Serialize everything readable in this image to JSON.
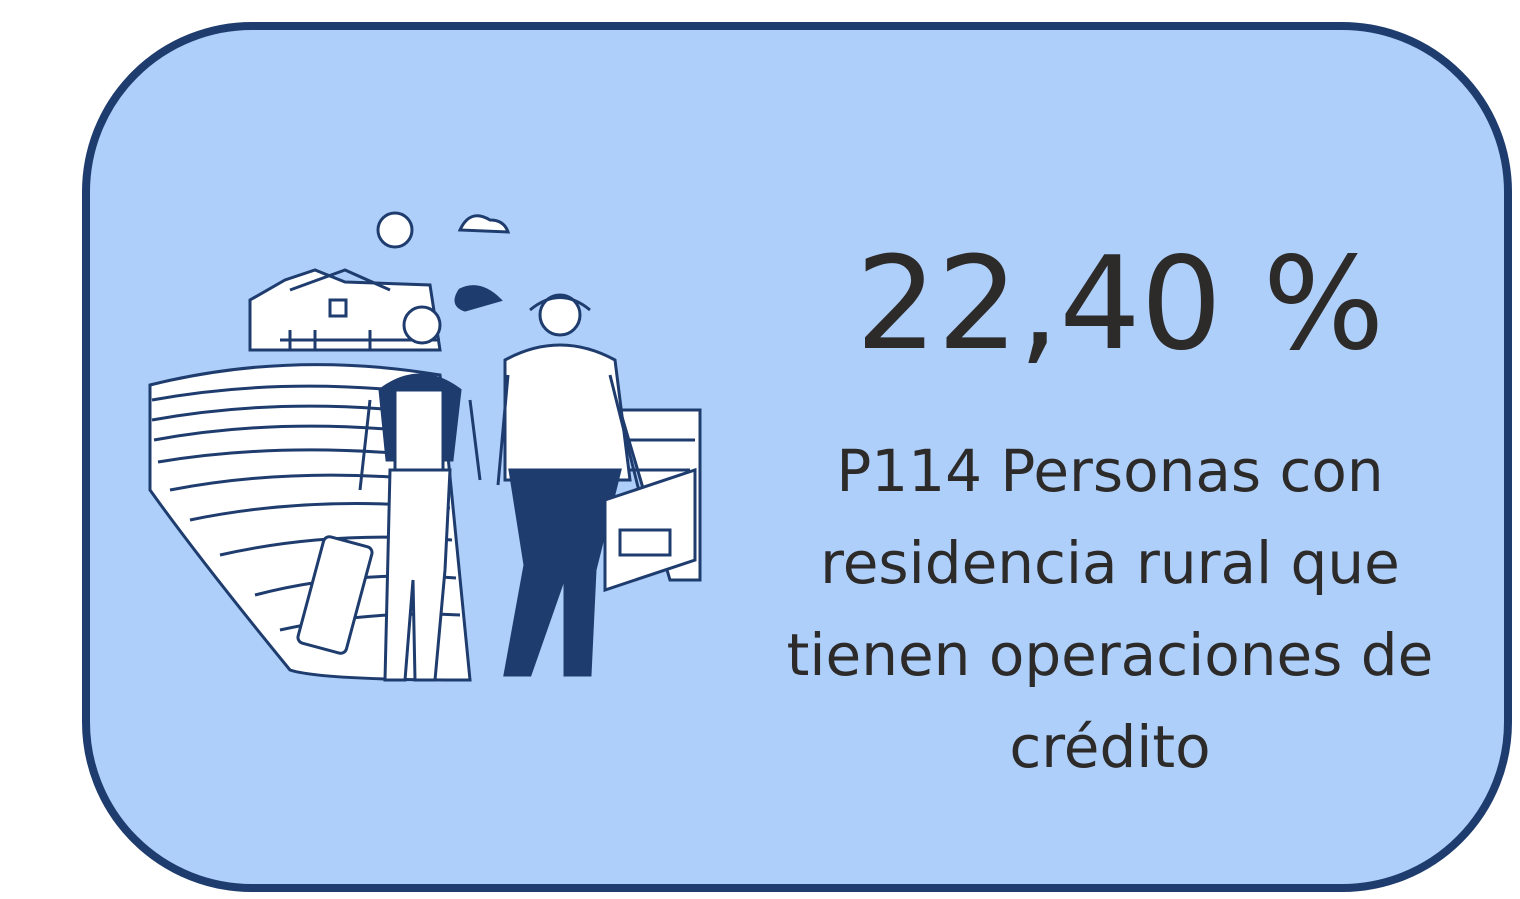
{
  "card": {
    "value": "22,40 %",
    "description": "P114 Personas con residencia rural que tienen operaciones de crédito"
  }
}
